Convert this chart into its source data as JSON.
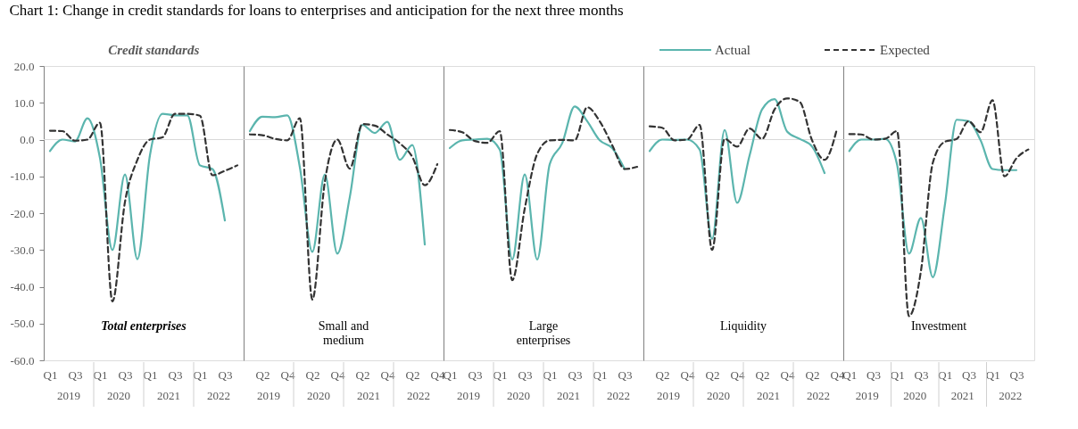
{
  "chart_data": [
    {
      "type": "line",
      "title": "Chart 1:    Change in credit standards for loans to enterprises and anticipation for the next three months",
      "subtitle": "Credit standards",
      "categories": [
        "Q1",
        null,
        "Q3",
        null,
        "Q1",
        null,
        "Q3",
        null,
        "Q1",
        null,
        "Q3",
        null,
        "Q1",
        null,
        "Q3",
        null
      ],
      "series": [
        {
          "name": "Actual",
          "color": "#5bb5ae",
          "line_style": "solid",
          "values": [
            -3.1,
            0,
            -0.5,
            5.8,
            -5,
            -30,
            -9.5,
            -32.5,
            -4.3,
            7,
            6.6,
            6.6,
            -7,
            -8,
            -22,
            null
          ]
        },
        {
          "name": "Expected",
          "color": "#333333",
          "line_style": "dashed",
          "values": [
            2.4,
            2.3,
            -0.3,
            0,
            4.6,
            -44,
            -17,
            -5.5,
            0,
            0.6,
            7,
            7,
            6.5,
            -9.7,
            -8.5,
            -7
          ]
        }
      ],
      "ylim": [
        -60,
        20
      ],
      "legend": "top right",
      "yticks": [
        {
          "value": 20,
          "label": "20.0"
        },
        {
          "value": 10,
          "label": "10.0"
        },
        {
          "value": 0,
          "label": "0.0"
        },
        {
          "value": -10,
          "label": "-10.0"
        },
        {
          "value": -20,
          "label": "-20.0"
        },
        {
          "value": -30,
          "label": "-30.0"
        },
        {
          "value": -40,
          "label": "-40.0"
        },
        {
          "value": -50,
          "label": "-50.0"
        },
        {
          "value": -60,
          "label": "-60.0"
        }
      ],
      "ref_lines": [
        {
          "axis": "y",
          "value": 0,
          "color": "#d9d9d9"
        }
      ],
      "annotations": [
        "2019",
        "2020",
        "2021",
        "2022",
        "Total enterprises"
      ]
    },
    {
      "type": "line",
      "categories": [
        null,
        "Q2",
        null,
        "Q4",
        null,
        "Q2",
        null,
        "Q4",
        null,
        "Q2",
        null,
        "Q4",
        null,
        "Q2",
        null,
        "Q4"
      ],
      "series": [
        {
          "color": "#5bb5ae",
          "line_style": "solid",
          "values": [
            2.3,
            6.2,
            6.1,
            6.6,
            -7.5,
            -30.5,
            -9.5,
            -31,
            -15.6,
            4,
            1.8,
            4.8,
            -5.5,
            -1.5,
            -28.5,
            null
          ]
        },
        {
          "color": "#333333",
          "line_style": "dashed",
          "values": [
            1.4,
            1.2,
            0.2,
            -0.2,
            5.8,
            -43.5,
            -11.5,
            0,
            -7.9,
            4.2,
            3.8,
            1.4,
            -1,
            -4.7,
            -12.4,
            -6.7
          ]
        }
      ],
      "ylim": [
        -60,
        20
      ],
      "tick_labels": "x",
      "ref_lines": [
        {
          "axis": "y",
          "value": 0,
          "color": "#d9d9d9"
        }
      ],
      "annotations": [
        "2019",
        "2020",
        "2021",
        "2022",
        "Small and\nmedium"
      ]
    },
    {
      "type": "line",
      "categories": [
        "Q1",
        null,
        "Q3",
        null,
        "Q1",
        null,
        "Q3",
        null,
        "Q1",
        null,
        "Q3",
        null,
        "Q1",
        null,
        "Q3",
        null
      ],
      "series": [
        {
          "color": "#5bb5ae",
          "line_style": "solid",
          "values": [
            -2.3,
            -0.2,
            0,
            0.2,
            -2.7,
            -32.6,
            -9.5,
            -32.6,
            -6.7,
            -1,
            9,
            5,
            -0.2,
            -2.3,
            -8,
            null
          ]
        },
        {
          "color": "#333333",
          "line_style": "dashed",
          "values": [
            2.6,
            2,
            -0.4,
            -0.9,
            2.3,
            -38.2,
            -18.8,
            -3.9,
            -0.2,
            -0.1,
            -0.2,
            8.8,
            5,
            -1.5,
            -8,
            -7.4
          ]
        }
      ],
      "ylim": [
        -60,
        20
      ],
      "tick_labels": "x",
      "ref_lines": [
        {
          "axis": "y",
          "value": 0,
          "color": "#d9d9d9"
        }
      ],
      "annotations": [
        "2019",
        "2020",
        "2021",
        "2022",
        "Large\nenterprises"
      ]
    },
    {
      "type": "line",
      "categories": [
        null,
        "Q2",
        null,
        "Q4",
        null,
        "Q2",
        null,
        "Q4",
        null,
        "Q2",
        null,
        "Q4",
        null,
        "Q2",
        null,
        "Q4"
      ],
      "series": [
        {
          "color": "#5bb5ae",
          "line_style": "solid",
          "values": [
            -3.1,
            0,
            -0.1,
            0,
            -2.7,
            -27,
            2.6,
            -17.2,
            -4.3,
            8.2,
            11,
            2.2,
            0.2,
            -1.9,
            -9.1,
            null
          ]
        },
        {
          "color": "#333333",
          "line_style": "dashed",
          "values": [
            3.6,
            3.2,
            -0.2,
            0,
            4,
            -30,
            0.2,
            -1.9,
            3,
            0.2,
            8.2,
            11.2,
            10.3,
            -0.2,
            -5.5,
            3
          ]
        }
      ],
      "ylim": [
        -60,
        20
      ],
      "tick_labels": "x",
      "ref_lines": [
        {
          "axis": "y",
          "value": 0,
          "color": "#d9d9d9"
        }
      ],
      "annotations": [
        "2019",
        "2020",
        "2021",
        "2022",
        "Liquidity"
      ]
    },
    {
      "type": "line",
      "categories": [
        "Q1",
        null,
        "Q3",
        null,
        "Q1",
        null,
        "Q3",
        null,
        "Q1",
        null,
        "Q3",
        null,
        "Q1",
        null,
        "Q3",
        null
      ],
      "series": [
        {
          "color": "#5bb5ae",
          "line_style": "solid",
          "values": [
            -3.1,
            0,
            0,
            0.2,
            -6.7,
            -31,
            -21.3,
            -37.4,
            -18,
            5.4,
            5,
            -0.2,
            -8,
            -8.3,
            -8.3,
            null
          ]
        },
        {
          "color": "#333333",
          "line_style": "dashed",
          "values": [
            1.5,
            1.4,
            0,
            0.2,
            2.3,
            -48,
            -35.8,
            -6.3,
            -0.6,
            0.2,
            5,
            2,
            10.7,
            -10,
            -5.1,
            -2.7
          ]
        }
      ],
      "ylim": [
        -60,
        20
      ],
      "tick_labels": "x",
      "ref_lines": [
        {
          "axis": "y",
          "value": 0,
          "color": "#d9d9d9"
        }
      ],
      "annotations": [
        "2019",
        "2020",
        "2021",
        "2022",
        "Investment"
      ]
    }
  ]
}
